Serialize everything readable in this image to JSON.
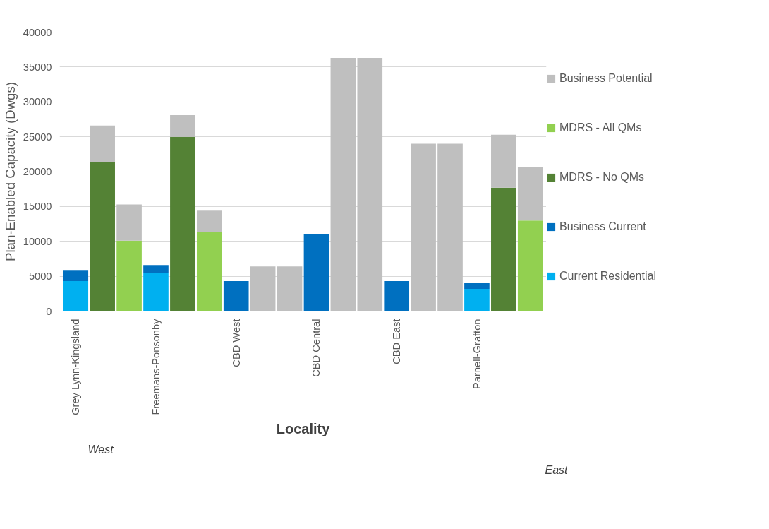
{
  "chart_data": {
    "type": "bar",
    "stacked": true,
    "xlabel": "Locality",
    "ylabel": "Plan-Enabled Capacity (Dwgs)",
    "categories": [
      "Grey Lynn-Kingsland",
      null,
      null,
      "Freemans-Ponsonby",
      null,
      null,
      "CBD West",
      null,
      null,
      "CBD Central",
      null,
      null,
      "CBD East",
      null,
      null,
      "Parnell-Grafton",
      null,
      null
    ],
    "series": [
      {
        "name": "Current Residential",
        "color": "#00b0f0",
        "values": [
          4300,
          null,
          null,
          5500,
          null,
          null,
          null,
          null,
          null,
          null,
          null,
          null,
          null,
          null,
          null,
          3200,
          null,
          null
        ]
      },
      {
        "name": "Business Current",
        "color": "#0070c0",
        "values": [
          1600,
          null,
          null,
          1100,
          null,
          null,
          4300,
          null,
          null,
          11000,
          null,
          null,
          4300,
          null,
          null,
          900,
          null,
          null
        ]
      },
      {
        "name": "MDRS - No QMs",
        "color": "#548235",
        "values": [
          null,
          21400,
          null,
          null,
          25000,
          null,
          null,
          null,
          null,
          null,
          null,
          null,
          null,
          null,
          null,
          null,
          17700,
          null
        ]
      },
      {
        "name": "MDRS - All QMs",
        "color": "#92d050",
        "values": [
          null,
          null,
          10100,
          null,
          null,
          11300,
          null,
          null,
          null,
          null,
          null,
          null,
          null,
          null,
          null,
          null,
          null,
          13000
        ]
      },
      {
        "name": "Business Potential",
        "color": "#bfbfbf",
        "values": [
          null,
          5200,
          5200,
          null,
          3100,
          3100,
          null,
          6400,
          6400,
          null,
          36300,
          36300,
          null,
          24000,
          24000,
          null,
          7600,
          7600
        ]
      }
    ],
    "ylim": [
      0,
      40000
    ],
    "yticks": [
      0,
      5000,
      10000,
      15000,
      20000,
      25000,
      30000,
      35000,
      40000
    ],
    "grid": "y",
    "legend": "right",
    "annotations": [
      "West",
      "East"
    ]
  }
}
